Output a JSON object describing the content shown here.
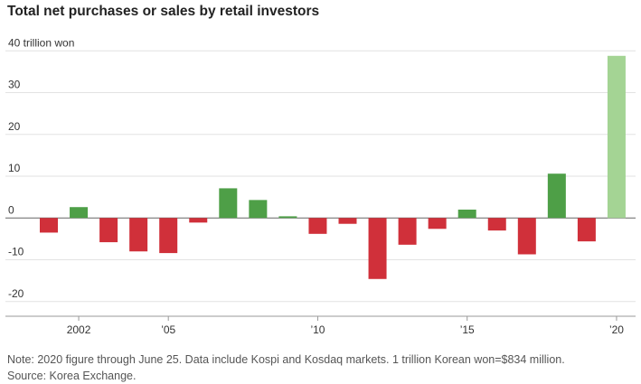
{
  "title": "Total net purchases or sales by retail investors",
  "notes": {
    "note": "Note: 2020 figure through June 25. Data include Kospi and Kosdaq markets. 1 trillion Korean won=$834 million.",
    "source": "Source: Korea Exchange."
  },
  "colors": {
    "positive": "#4e9f47",
    "negative": "#d0303a",
    "partial_year": "#a4d494",
    "grid": "#e2e2e2",
    "zero_line": "#666666",
    "axis": "#999999",
    "text": "#333333"
  },
  "chart_data": {
    "type": "bar",
    "title": "Total net purchases or sales by retail investors",
    "xlabel": "",
    "ylabel": "",
    "unit": "trillion won",
    "x": [
      2001,
      2002,
      2003,
      2004,
      2005,
      2006,
      2007,
      2008,
      2009,
      2010,
      2011,
      2012,
      2013,
      2014,
      2015,
      2016,
      2017,
      2018,
      2019,
      2020
    ],
    "values": [
      -3.5,
      2.6,
      -5.8,
      -8.0,
      -8.4,
      -1.1,
      7.1,
      4.3,
      0.4,
      -3.8,
      -1.4,
      -14.6,
      -6.4,
      -2.6,
      2.0,
      -3.0,
      -8.7,
      10.6,
      -5.6,
      38.8
    ],
    "partial": [
      false,
      false,
      false,
      false,
      false,
      false,
      false,
      false,
      false,
      false,
      false,
      false,
      false,
      false,
      false,
      false,
      false,
      false,
      false,
      true
    ],
    "ylim": [
      -22,
      42
    ],
    "y_ticks": [
      40,
      30,
      20,
      10,
      0,
      -10,
      -20
    ],
    "y_tick_labels": [
      "40 trillion won",
      "30",
      "20",
      "10",
      "0",
      "-10",
      "-20"
    ],
    "x_ticks": [
      2002,
      2005,
      2010,
      2015,
      2020
    ],
    "x_tick_labels": [
      "2002",
      "’05",
      "’10",
      "’15",
      "’20"
    ],
    "grid": true
  }
}
